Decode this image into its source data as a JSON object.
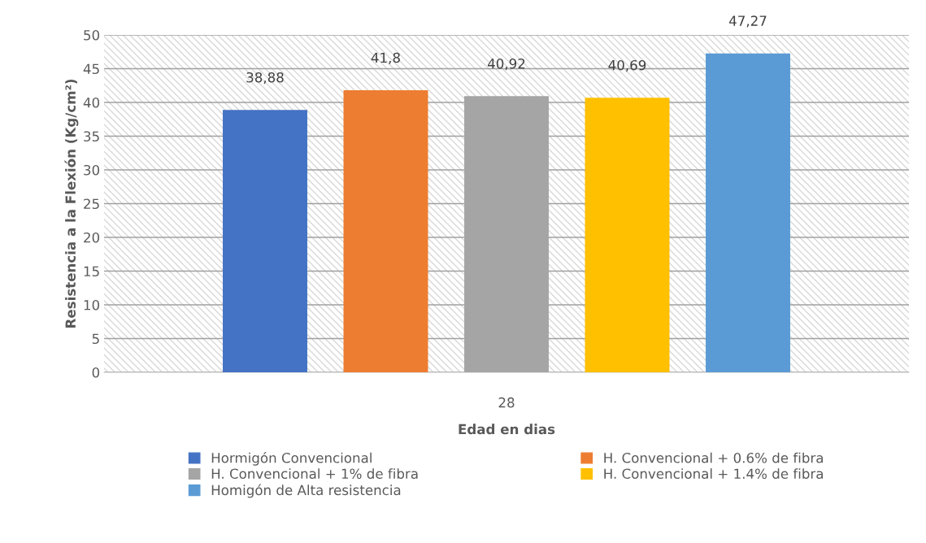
{
  "chart_data": {
    "type": "bar",
    "xlabel": "Edad en dias",
    "ylabel": "Resistencia a la Flexión (Kg/cm²)",
    "categories": [
      "28"
    ],
    "series": [
      {
        "name": "Hormigón Convencional",
        "color": "#4472c4",
        "values": [
          38.88
        ],
        "value_labels": [
          "38,88"
        ]
      },
      {
        "name": "H. Convencional + 0.6% de fibra",
        "color": "#ed7d31",
        "values": [
          41.8
        ],
        "value_labels": [
          "41,8"
        ]
      },
      {
        "name": "H. Convencional + 1% de fibra",
        "color": "#a5a5a5",
        "values": [
          40.92
        ],
        "value_labels": [
          "40,92"
        ]
      },
      {
        "name": "H. Convencional + 1.4% de fibra",
        "color": "#ffc000",
        "values": [
          40.69
        ],
        "value_labels": [
          "40,69"
        ]
      },
      {
        "name": "Homigón de Alta resistencia",
        "color": "#5b9bd5",
        "values": [
          47.27
        ],
        "value_labels": [
          "47,27"
        ]
      }
    ],
    "ylim": [
      0,
      50
    ],
    "yticks": [
      0,
      5,
      10,
      15,
      20,
      25,
      30,
      35,
      40,
      45,
      50
    ],
    "grid": "y",
    "legend": "bottom"
  }
}
